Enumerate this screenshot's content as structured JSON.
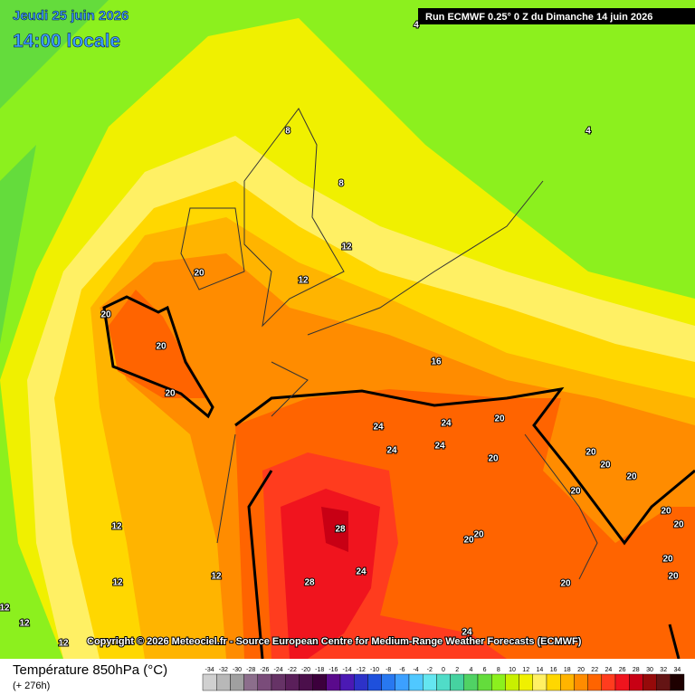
{
  "header": {
    "date": "Jeudi 25 juin 2026",
    "time": "14:00 locale",
    "run": "Run ECMWF 0.25° 0 Z du Dimanche 14 juin 2026"
  },
  "copyright": "Copyright © 2026 Meteociel.fr - Source European Centre for Medium-Range Weather Forecasts (ECMWF)",
  "footer": {
    "parameter": "Température 850hPa (°C)",
    "lead": "(+ 276h)"
  },
  "legend": {
    "ticks": [
      -34,
      -32,
      -30,
      -28,
      -26,
      -24,
      -22,
      -20,
      -18,
      -16,
      -14,
      -12,
      -10,
      -8,
      -6,
      -4,
      -2,
      0,
      2,
      4,
      6,
      8,
      10,
      12,
      14,
      16,
      18,
      20,
      22,
      24,
      26,
      28,
      30,
      32,
      34
    ],
    "colors": [
      "#d0d0d0",
      "#b8b8b8",
      "#a0a0a0",
      "#8c6e8c",
      "#7a4c7a",
      "#663366",
      "#5a1f5a",
      "#4b0f4b",
      "#3c003c",
      "#5a0a8c",
      "#4b19b4",
      "#2d32c8",
      "#1e50dc",
      "#2878f0",
      "#3ca0ff",
      "#50c8ff",
      "#64e6f0",
      "#50dcc8",
      "#46d2a0",
      "#50d264",
      "#64dc3c",
      "#8cf01e",
      "#c8f000",
      "#f0f000",
      "#fff064",
      "#ffd700",
      "#ffb400",
      "#ff8c00",
      "#ff6400",
      "#ff3c1e",
      "#f0141e",
      "#c80014",
      "#960a0a",
      "#641414",
      "#1e0000"
    ]
  },
  "contour_labels": [
    4,
    8,
    8,
    4,
    12,
    12,
    20,
    20,
    20,
    20,
    16,
    24,
    24,
    24,
    24,
    20,
    20,
    20,
    20,
    20,
    28,
    24,
    28,
    12,
    12,
    12,
    12,
    12,
    12,
    24,
    20,
    20,
    20,
    20,
    20,
    20,
    20,
    20
  ]
}
